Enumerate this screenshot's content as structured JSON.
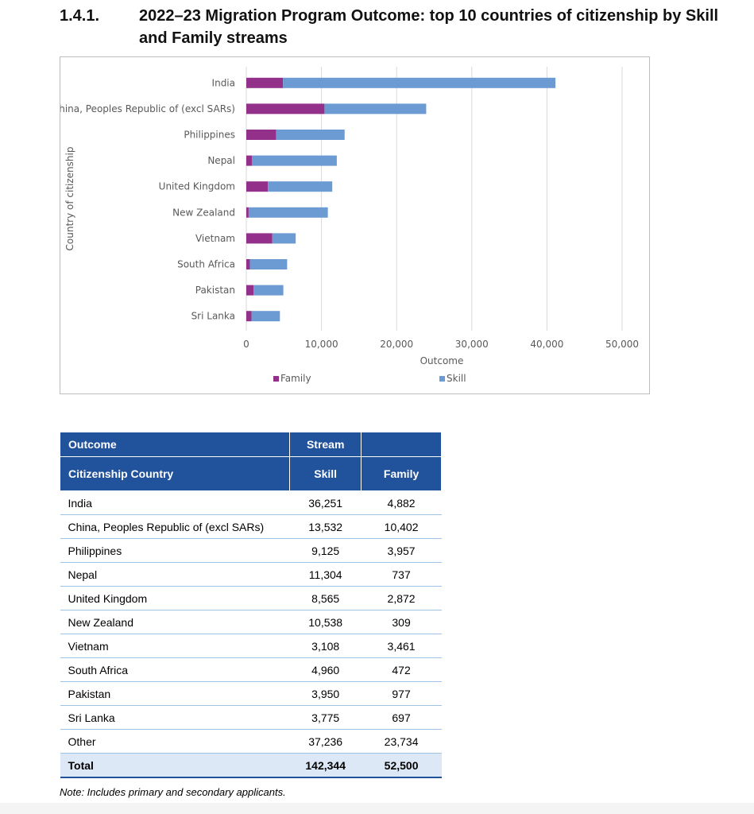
{
  "section": {
    "number": "1.4.1.",
    "title": "2022–23 Migration Program Outcome: top 10 countries of citizenship by Skill and Family streams"
  },
  "chart_data": {
    "type": "bar",
    "orientation": "horizontal",
    "stacked": true,
    "categories": [
      "India",
      "China, Peoples Republic of (excl SARs)",
      "Philippines",
      "Nepal",
      "United Kingdom",
      "New Zealand",
      "Vietnam",
      "South Africa",
      "Pakistan",
      "Sri Lanka"
    ],
    "series": [
      {
        "name": "Family",
        "color": "#93318a",
        "values": [
          4882,
          10402,
          3957,
          737,
          2872,
          309,
          3461,
          472,
          977,
          697
        ]
      },
      {
        "name": "Skill",
        "color": "#6b9bd2",
        "values": [
          36251,
          13532,
          9125,
          11304,
          8565,
          10538,
          3108,
          4960,
          3950,
          3775
        ]
      }
    ],
    "xlabel": "Outcome",
    "ylabel": "Country of citizenship",
    "xlim": [
      0,
      50000
    ],
    "xticks": [
      0,
      10000,
      20000,
      30000,
      40000,
      50000
    ],
    "xtick_labels": [
      "0",
      "10,000",
      "20,000",
      "30,000",
      "40,000",
      "50,000"
    ],
    "grid": "vertical",
    "legend_position": "bottom"
  },
  "table": {
    "header_row1": {
      "col1": "Outcome",
      "col2": "Stream"
    },
    "header_row2": {
      "col1": "Citizenship Country",
      "col2": "Skill",
      "col3": "Family"
    },
    "rows": [
      {
        "country": "India",
        "skill": "36,251",
        "family": "4,882"
      },
      {
        "country": "China, Peoples Republic of (excl SARs)",
        "skill": "13,532",
        "family": "10,402"
      },
      {
        "country": "Philippines",
        "skill": "9,125",
        "family": "3,957"
      },
      {
        "country": "Nepal",
        "skill": "11,304",
        "family": "737"
      },
      {
        "country": "United Kingdom",
        "skill": "8,565",
        "family": "2,872"
      },
      {
        "country": "New Zealand",
        "skill": "10,538",
        "family": "309"
      },
      {
        "country": "Vietnam",
        "skill": "3,108",
        "family": "3,461"
      },
      {
        "country": "South Africa",
        "skill": "4,960",
        "family": "472"
      },
      {
        "country": "Pakistan",
        "skill": "3,950",
        "family": "977"
      },
      {
        "country": "Sri Lanka",
        "skill": "3,775",
        "family": "697"
      },
      {
        "country": "Other",
        "skill": "37,236",
        "family": "23,734"
      }
    ],
    "total": {
      "label": "Total",
      "skill": "142,344",
      "family": "52,500"
    }
  },
  "note": "Note: Includes primary and secondary applicants."
}
